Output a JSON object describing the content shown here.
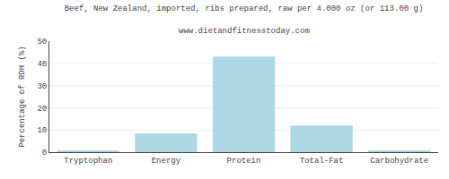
{
  "chart_data": {
    "type": "bar",
    "title": "Beef, New Zealand, imported, ribs prepared, raw per 4.000 oz (or 113.00 g)",
    "subtitle": "www.dietandfitnesstoday.com",
    "categories": [
      "Tryptophan",
      "Energy",
      "Protein",
      "Total-Fat",
      "Carbohydrate"
    ],
    "values": [
      0.5,
      8.5,
      43.0,
      12.0,
      0.5
    ],
    "color": "#add8e6",
    "ylabel": "Percentage of RDH (%)",
    "ylim": [
      0,
      50
    ],
    "yticks": [
      0,
      10,
      20,
      30,
      40,
      50
    ],
    "grid": true
  }
}
